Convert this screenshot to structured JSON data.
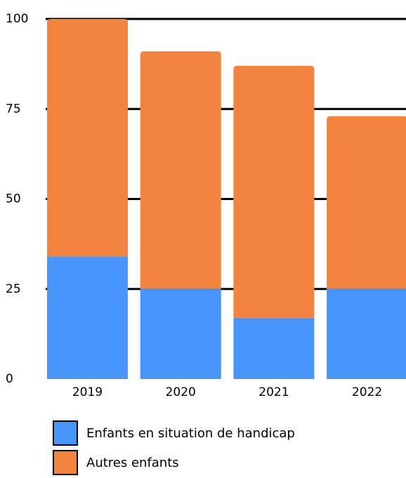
{
  "chart_data": {
    "type": "bar",
    "stacked": true,
    "categories": [
      "2019",
      "2020",
      "2021",
      "2022"
    ],
    "series": [
      {
        "name": "Enfants en situation de handicap",
        "color": "#4794fb",
        "values": [
          34,
          25,
          17,
          25
        ]
      },
      {
        "name": "Autres enfants",
        "color": "#f2843f",
        "values": [
          66,
          66,
          70,
          48
        ]
      }
    ],
    "ylim": [
      0,
      100
    ],
    "yticks": [
      "0",
      "25",
      "50",
      "75",
      "100"
    ],
    "grid": true,
    "legend_position": "bottom-left"
  }
}
